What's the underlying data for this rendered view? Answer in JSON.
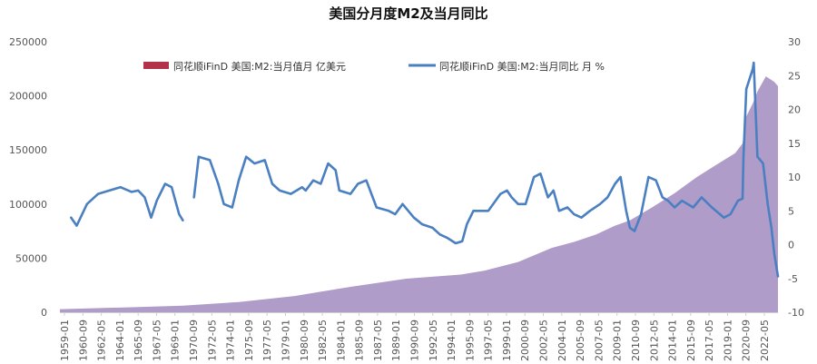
{
  "chart_data": {
    "type": "area",
    "title": "美国分月度M2及当月同比",
    "legend_position": "top",
    "grid": false,
    "y_left": {
      "ylim": [
        0,
        250000
      ],
      "ticks": [
        "0",
        "50000",
        "100000",
        "150000",
        "200000",
        "250000"
      ]
    },
    "y_right": {
      "ylim": [
        -10,
        30
      ],
      "ticks": [
        "-10",
        "-5",
        "0",
        "5",
        "10",
        "15",
        "20",
        "25",
        "30"
      ]
    },
    "x_tick_labels": [
      "1959-01",
      "1960-09",
      "1962-05",
      "1964-01",
      "1965-09",
      "1967-05",
      "1969-01",
      "1970-09",
      "1972-05",
      "1974-01",
      "1975-09",
      "1977-05",
      "1979-01",
      "1980-09",
      "1982-05",
      "1984-01",
      "1985-09",
      "1987-05",
      "1989-01",
      "1990-09",
      "1992-05",
      "1994-01",
      "1995-09",
      "1997-05",
      "1999-01",
      "2000-09",
      "2002-05",
      "2004-01",
      "2005-09",
      "2007-05",
      "2009-01",
      "2010-09",
      "2012-05",
      "2014-01",
      "2015-09",
      "2017-05",
      "2019-01",
      "2020-09",
      "2022-05"
    ],
    "series": [
      {
        "name": "同花顺iFinD 美国:M2:当月值月 亿美元",
        "type": "area",
        "axis": "left",
        "color": "#b09cc9",
        "points": [
          [
            "1959-01",
            2860
          ],
          [
            "1965-01",
            4500
          ],
          [
            "1970-01",
            6000
          ],
          [
            "1975-01",
            9500
          ],
          [
            "1980-01",
            15000
          ],
          [
            "1985-01",
            23500
          ],
          [
            "1990-01",
            31000
          ],
          [
            "1995-01",
            35000
          ],
          [
            "1997-01",
            38500
          ],
          [
            "2000-01",
            46500
          ],
          [
            "2003-01",
            59500
          ],
          [
            "2005-01",
            65000
          ],
          [
            "2007-01",
            72000
          ],
          [
            "2008-09",
            80000
          ],
          [
            "2010-01",
            85000
          ],
          [
            "2012-01",
            97000
          ],
          [
            "2014-01",
            110000
          ],
          [
            "2016-01",
            125000
          ],
          [
            "2018-01",
            138000
          ],
          [
            "2019-06",
            147000
          ],
          [
            "2020-02",
            156000
          ],
          [
            "2020-06",
            181000
          ],
          [
            "2021-01",
            193000
          ],
          [
            "2021-06",
            204000
          ],
          [
            "2022-03",
            218000
          ],
          [
            "2022-12",
            213000
          ],
          [
            "2023-04",
            209000
          ]
        ]
      },
      {
        "name": "同花顺iFinD 美国:M2:当月同比 月 %",
        "type": "line",
        "axis": "right",
        "color": "#4a7fc1",
        "segments": [
          [
            [
              "1960-01",
              4.0
            ],
            [
              "1960-07",
              2.8
            ],
            [
              "1961-06",
              6.0
            ],
            [
              "1962-06",
              7.5
            ],
            [
              "1963-06",
              8.0
            ],
            [
              "1964-06",
              8.5
            ],
            [
              "1965-06",
              7.8
            ],
            [
              "1966-01",
              8.0
            ],
            [
              "1966-08",
              7.0
            ],
            [
              "1967-03",
              4.0
            ],
            [
              "1967-09",
              6.5
            ],
            [
              "1968-06",
              9.0
            ],
            [
              "1969-01",
              8.5
            ],
            [
              "1969-09",
              4.5
            ],
            [
              "1970-01",
              3.6
            ]
          ],
          [
            [
              "1971-01",
              7.0
            ],
            [
              "1971-06",
              13.0
            ],
            [
              "1972-06",
              12.5
            ],
            [
              "1973-03",
              9.0
            ],
            [
              "1973-09",
              6.0
            ],
            [
              "1974-06",
              5.5
            ],
            [
              "1975-01",
              9.5
            ],
            [
              "1975-09",
              13.0
            ],
            [
              "1976-06",
              12.0
            ],
            [
              "1977-05",
              12.5
            ],
            [
              "1978-01",
              9.0
            ],
            [
              "1978-09",
              8.0
            ],
            [
              "1979-09",
              7.5
            ],
            [
              "1980-09",
              8.5
            ],
            [
              "1981-01",
              8.0
            ],
            [
              "1981-09",
              9.5
            ],
            [
              "1982-05",
              9.0
            ],
            [
              "1983-01",
              12.0
            ],
            [
              "1983-09",
              11.0
            ],
            [
              "1984-01",
              8.0
            ],
            [
              "1985-01",
              7.5
            ],
            [
              "1985-09",
              9.0
            ],
            [
              "1986-06",
              9.5
            ],
            [
              "1987-05",
              5.5
            ],
            [
              "1988-06",
              5.0
            ],
            [
              "1989-01",
              4.5
            ],
            [
              "1989-09",
              6.0
            ],
            [
              "1990-09",
              4.0
            ],
            [
              "1991-06",
              3.0
            ],
            [
              "1992-05",
              2.5
            ],
            [
              "1993-01",
              1.5
            ],
            [
              "1993-09",
              1.0
            ],
            [
              "1994-06",
              0.2
            ],
            [
              "1995-01",
              0.5
            ],
            [
              "1995-06",
              3.0
            ],
            [
              "1996-01",
              5.0
            ],
            [
              "1997-05",
              5.0
            ],
            [
              "1998-06",
              7.5
            ],
            [
              "1999-01",
              8.0
            ],
            [
              "1999-06",
              7.0
            ],
            [
              "2000-01",
              6.0
            ],
            [
              "2000-09",
              6.0
            ],
            [
              "2001-06",
              10.0
            ],
            [
              "2002-01",
              10.5
            ],
            [
              "2002-09",
              7.0
            ],
            [
              "2003-03",
              8.0
            ],
            [
              "2003-09",
              5.0
            ],
            [
              "2004-06",
              5.5
            ],
            [
              "2005-01",
              4.5
            ],
            [
              "2005-09",
              4.0
            ],
            [
              "2006-06",
              5.0
            ],
            [
              "2007-05",
              6.0
            ],
            [
              "2008-01",
              7.0
            ],
            [
              "2008-09",
              9.0
            ],
            [
              "2009-03",
              10.0
            ],
            [
              "2009-09",
              5.0
            ],
            [
              "2010-01",
              2.5
            ],
            [
              "2010-06",
              2.0
            ],
            [
              "2011-01",
              4.5
            ],
            [
              "2011-09",
              10.0
            ],
            [
              "2012-05",
              9.5
            ],
            [
              "2012-12",
              7.0
            ],
            [
              "2013-06",
              6.5
            ],
            [
              "2014-01",
              5.5
            ],
            [
              "2014-09",
              6.5
            ],
            [
              "2015-09",
              5.5
            ],
            [
              "2016-06",
              7.0
            ],
            [
              "2017-05",
              5.5
            ],
            [
              "2018-06",
              4.0
            ],
            [
              "2019-01",
              4.5
            ],
            [
              "2019-09",
              6.5
            ],
            [
              "2020-02",
              6.8
            ],
            [
              "2020-03",
              13.0
            ],
            [
              "2020-06",
              23.0
            ],
            [
              "2021-01",
              26.0
            ],
            [
              "2021-02",
              26.9
            ],
            [
              "2021-06",
              13.0
            ],
            [
              "2021-12",
              12.0
            ],
            [
              "2022-05",
              6.0
            ],
            [
              "2022-09",
              2.5
            ],
            [
              "2022-12",
              -1.3
            ],
            [
              "2023-04",
              -4.7
            ]
          ]
        ]
      }
    ]
  }
}
